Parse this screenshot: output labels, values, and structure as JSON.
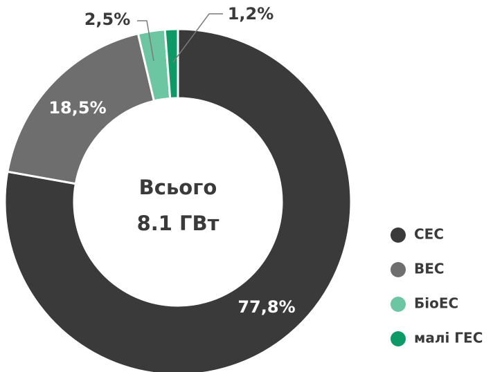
{
  "chart_data": {
    "type": "donut",
    "center_text": [
      "Всього",
      "8.1 ГВт"
    ],
    "categories": [
      "СЕС",
      "ВЕС",
      "БіоЕС",
      "малі ГЕС"
    ],
    "values": [
      77.8,
      18.5,
      2.5,
      1.2
    ],
    "value_labels": [
      "77,8%",
      "18,5%",
      "2,5%",
      "1,2%"
    ],
    "colors": [
      "#3a3a3a",
      "#6e6e6e",
      "#6cc6a1",
      "#0e9a66"
    ],
    "legend": "right"
  }
}
